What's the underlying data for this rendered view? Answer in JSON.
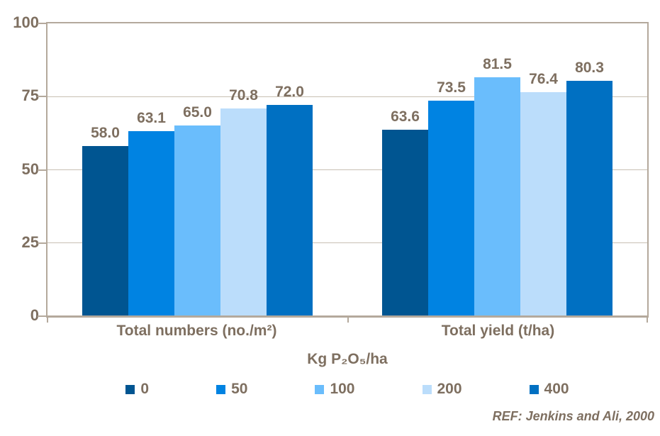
{
  "chart_data": {
    "type": "bar",
    "title": "",
    "categories": [
      "Total numbers (no./m²)",
      "Total yield (t/ha)"
    ],
    "series": [
      {
        "name": "0",
        "color": "#005591",
        "values": [
          58.0,
          63.6
        ]
      },
      {
        "name": "50",
        "color": "#0083E2",
        "values": [
          63.1,
          73.5
        ]
      },
      {
        "name": "100",
        "color": "#6ABDFC",
        "values": [
          65.0,
          81.5
        ]
      },
      {
        "name": "200",
        "color": "#BBDDFB",
        "values": [
          70.8,
          76.4
        ]
      },
      {
        "name": "400",
        "color": "#0070C2",
        "values": [
          72.0,
          80.3
        ]
      }
    ],
    "ylim": [
      0,
      100
    ],
    "y_ticks": [
      100,
      75,
      50,
      25,
      0
    ],
    "value_label_decimals": 1,
    "grid": true,
    "legend_position": "bottom",
    "axis_title": "Kg P₂O₅/ha",
    "annotation": "REF: Jenkins and Ali, 2000"
  },
  "colors": {
    "text": "#7E6F60",
    "axis_line": "#B4A99C",
    "grid_line": "#C8BFB3",
    "background": "#FFFFFF"
  }
}
